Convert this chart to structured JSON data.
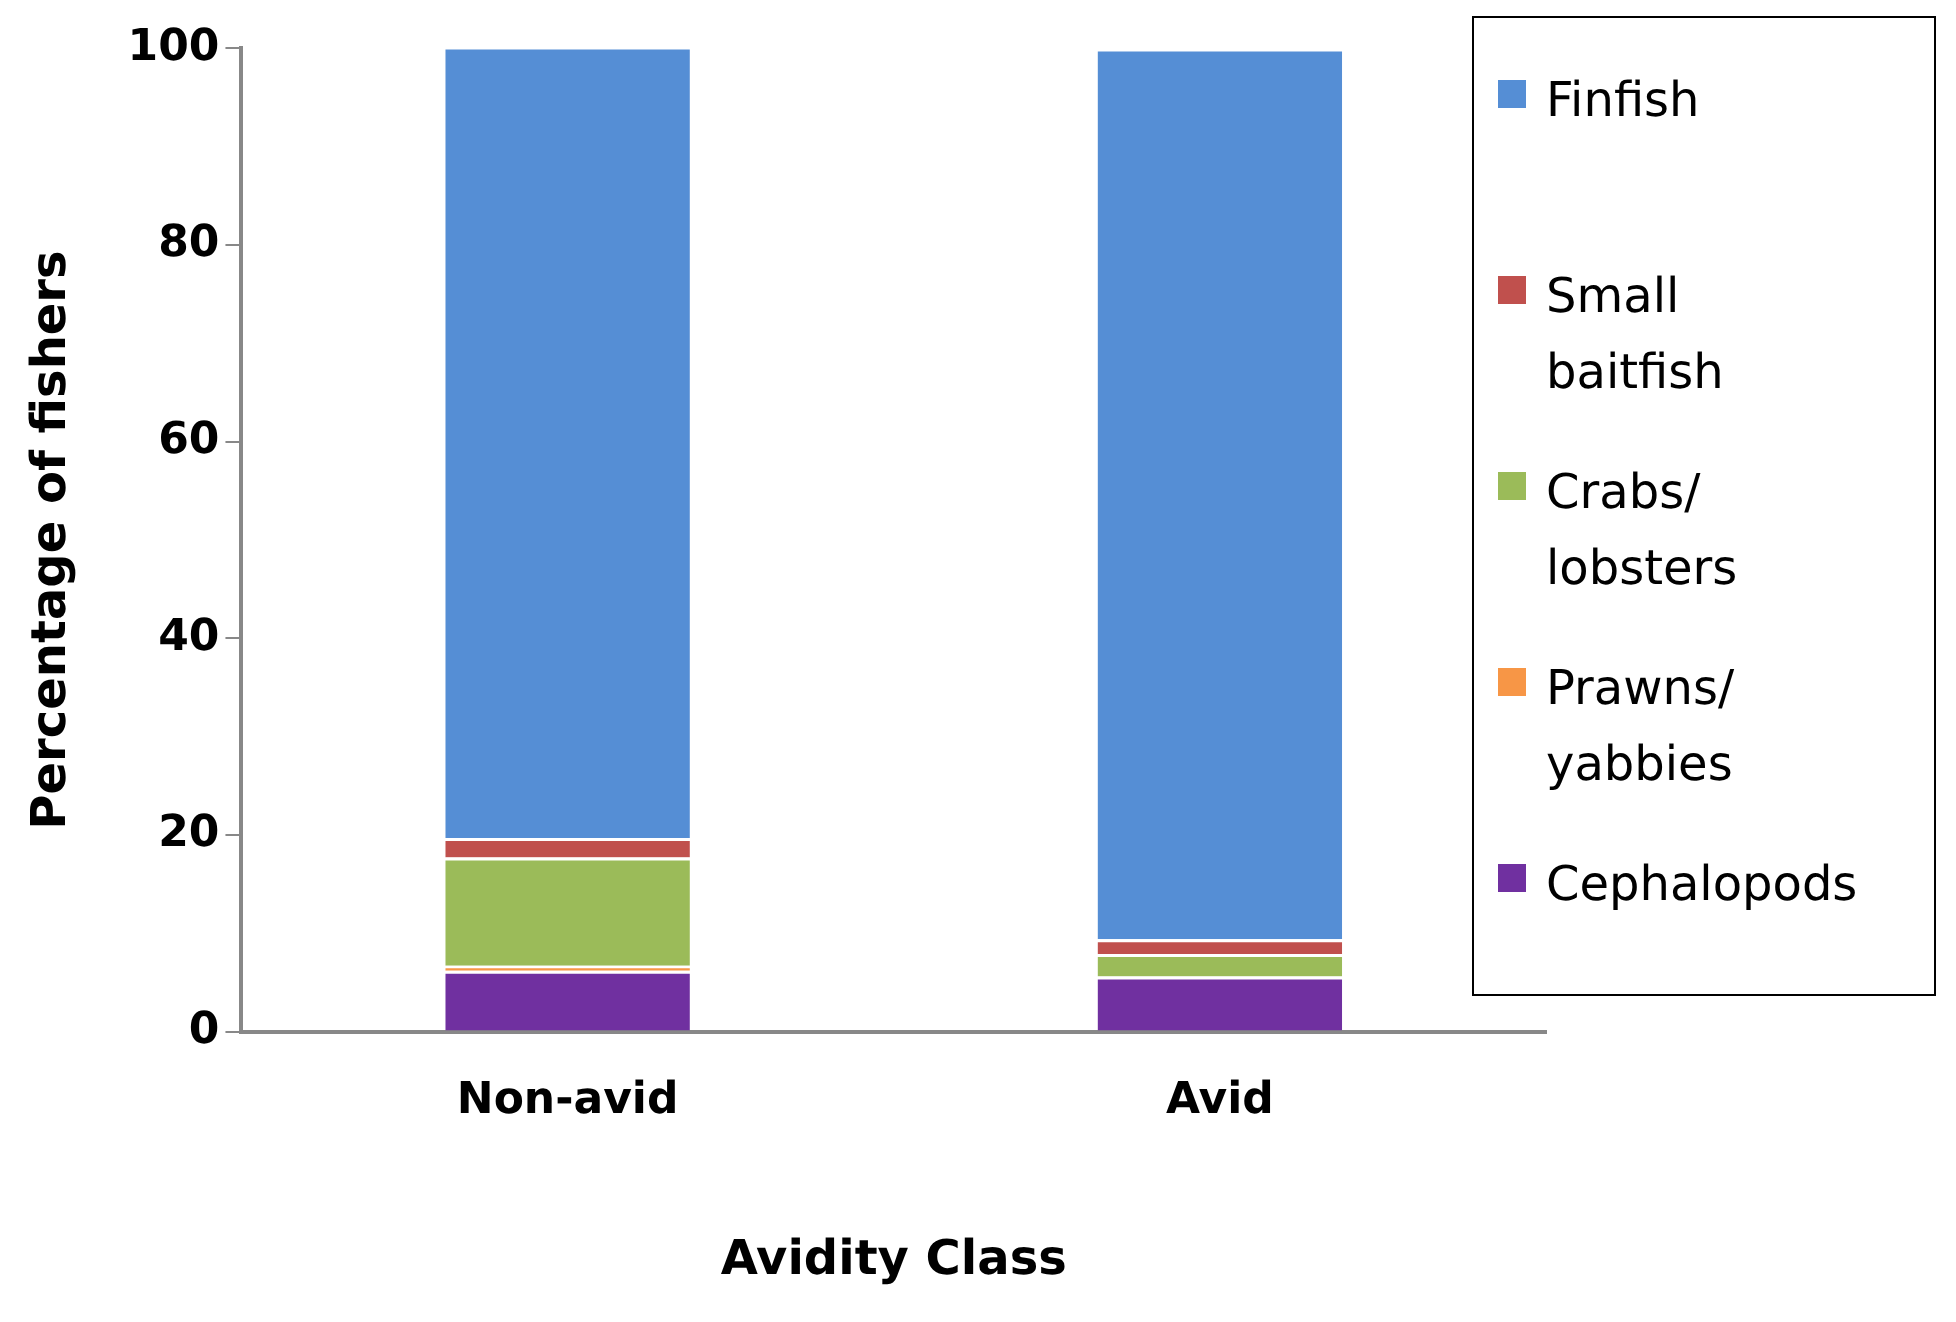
{
  "chart_data": {
    "type": "bar",
    "stacked": true,
    "xlabel": "Avidity Class",
    "ylabel": "Percentage of fishers",
    "categories": [
      "Non-avid",
      "Avid"
    ],
    "series": [
      {
        "name": "Cephalopods",
        "color": "#7030a0",
        "values": [
          6.2,
          5.6
        ]
      },
      {
        "name": "Prawns/ yabbies",
        "color": "#f79646",
        "values": [
          0.5,
          0
        ]
      },
      {
        "name": "Crabs/ lobsters",
        "color": "#9bbb59",
        "values": [
          11.0,
          2.3
        ]
      },
      {
        "name": "Small baitfish",
        "color": "#c0504d",
        "values": [
          2.0,
          1.5
        ]
      },
      {
        "name": "Finfish",
        "color": "#558ed5",
        "values": [
          80.5,
          90.6
        ]
      }
    ],
    "ylim": [
      0,
      100
    ],
    "yticks": [
      0,
      20,
      40,
      60,
      80,
      100
    ],
    "grid": false,
    "legend": "right"
  }
}
